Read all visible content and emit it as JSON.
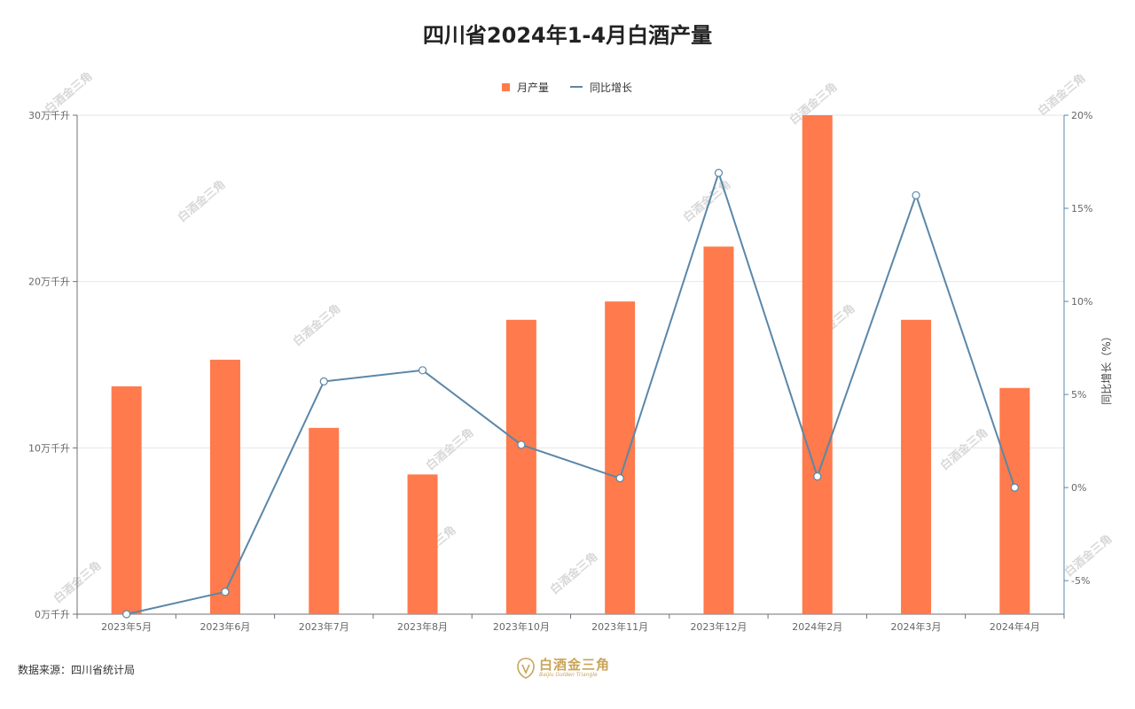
{
  "footer": {
    "source_label": "数据来源：四川省统计局",
    "logo_name": "白酒金三角",
    "logo_subtitle": "Baijiu Golden Triangle"
  },
  "watermark_text": "白酒金三角",
  "chart_data": {
    "type": "bar+line",
    "title": "四川省2024年1-4月白酒产量",
    "categories": [
      "2023年5月",
      "2023年6月",
      "2023年7月",
      "2023年8月",
      "2023年10月",
      "2023年11月",
      "2023年12月",
      "2024年2月",
      "2024年3月",
      "2024年4月"
    ],
    "series": [
      {
        "name": "月产量",
        "type": "bar",
        "axis": "left",
        "color": "#ff7a4c",
        "values": [
          13.7,
          15.3,
          11.2,
          8.4,
          17.7,
          18.8,
          22.1,
          30.0,
          17.7,
          13.6
        ]
      },
      {
        "name": "同比增长",
        "type": "line",
        "axis": "right",
        "color": "#5b87a8",
        "values": [
          -6.8,
          -5.6,
          5.7,
          6.3,
          2.3,
          0.5,
          16.9,
          0.6,
          15.7,
          0.0
        ]
      }
    ],
    "left_axis": {
      "ylim": [
        0,
        30
      ],
      "ticks": [
        "0万千升",
        "10万千升",
        "20万千升",
        "30万千升"
      ],
      "tick_values": [
        0,
        10,
        20,
        30
      ]
    },
    "right_axis": {
      "label": "同比增长（%）",
      "ylim": [
        -6.8,
        20
      ],
      "ticks": [
        "-5%",
        "0%",
        "5%",
        "10%",
        "15%",
        "20%"
      ],
      "tick_values": [
        -5,
        0,
        5,
        10,
        15,
        20
      ]
    },
    "legend_position": "top-center",
    "grid": true
  }
}
